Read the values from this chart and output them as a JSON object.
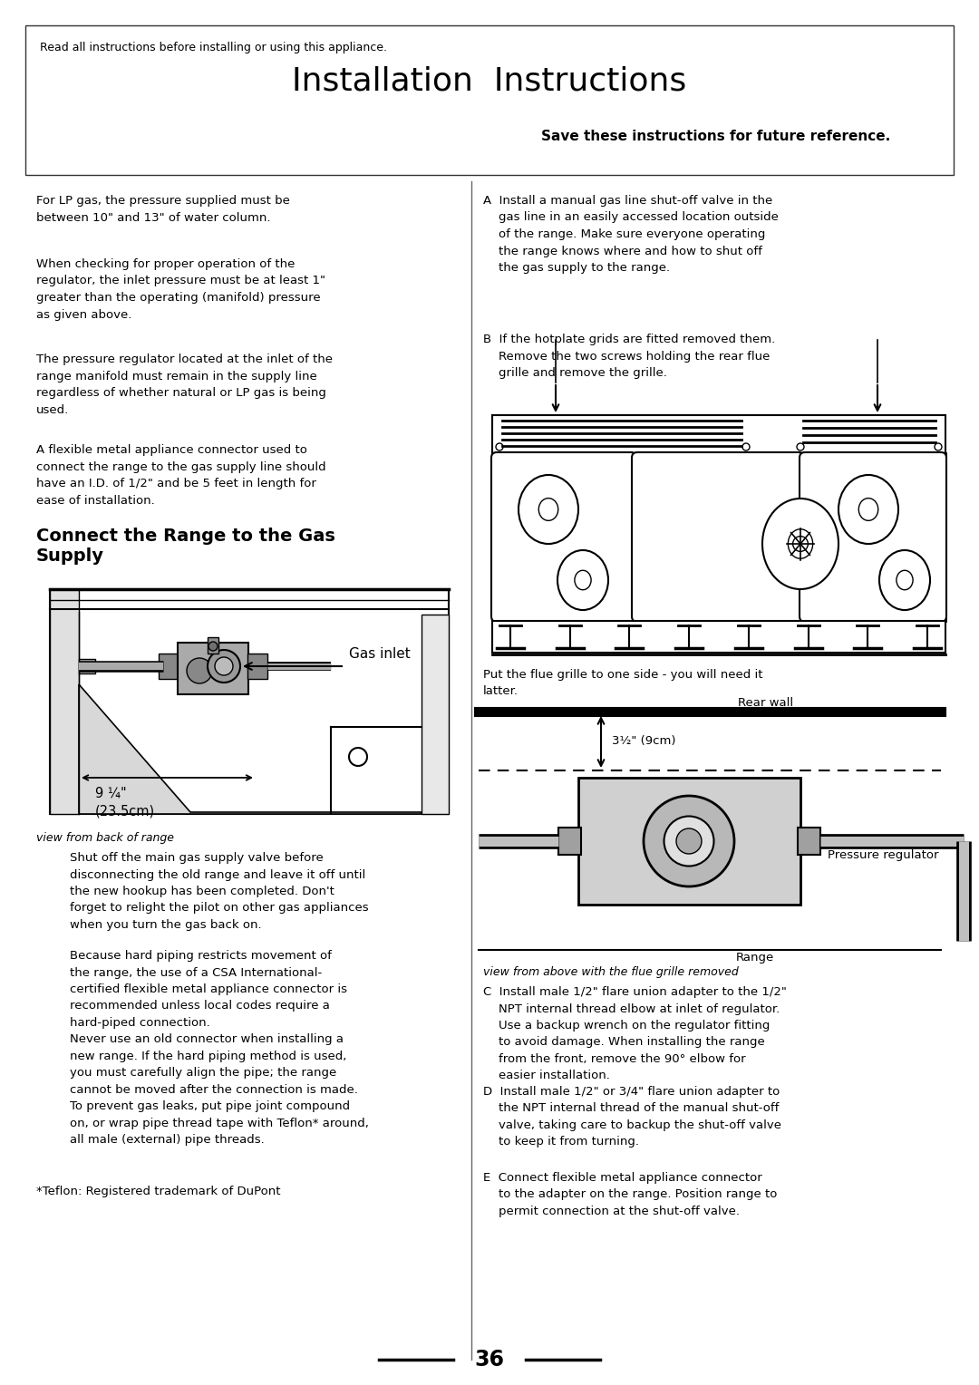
{
  "bg_color": "#ffffff",
  "page_number": "36",
  "header_text": "Read all instructions before installing or using this appliance.",
  "title": "Installation  Instructions",
  "subtitle": "Save these instructions for future reference.",
  "col1_para1": "For LP gas, the pressure supplied must be\nbetween 10\" and 13\" of water column.",
  "col1_para2": "When checking for proper operation of the\nregulator, the inlet pressure must be at least 1\"\ngreater than the operating (manifold) pressure\nas given above.",
  "col1_para3": "The pressure regulator located at the inlet of the\nrange manifold must remain in the supply line\nregardless of whether natural or LP gas is being\nused.",
  "col1_para4": "A flexible metal appliance connector used to\nconnect the range to the gas supply line should\nhave an I.D. of 1/2\" and be 5 feet in length for\nease of installation.",
  "section_title": "Connect the Range to the Gas\nSupply",
  "gas_inlet_label": "Gas inlet",
  "dimension_label": "9 ¼\"\n(23.5cm)",
  "view_back_label": "view from back of range",
  "col1_para5": "    Shut off the main gas supply valve before\n    disconnecting the old range and leave it off until\n    the new hookup has been completed. Don't\n    forget to relight the pilot on other gas appliances\n    when you turn the gas back on.",
  "col1_para6": "    Because hard piping restricts movement of\n    the range, the use of a CSA International-\n    certified flexible metal appliance connector is\n    recommended unless local codes require a\n    hard-piped connection.",
  "col1_para7": "    Never use an old connector when installing a\n    new range. If the hard piping method is used,\n    you must carefully align the pipe; the range\n    cannot be moved after the connection is made.\n    To prevent gas leaks, put pipe joint compound\n    on, or wrap pipe thread tape with Teflon* around,\n    all male (external) pipe threads.",
  "col1_teflon": "*Teflon: Registered trademark of DuPont",
  "col2_para_A": "A  Install a manual gas line shut-off valve in the\n    gas line in an easily accessed location outside\n    of the range. Make sure everyone operating\n    the range knows where and how to shut off\n    the gas supply to the range.",
  "col2_para_B": "B  If the hotplate grids are fitted removed them.\n    Remove the two screws holding the rear flue\n    grille and remove the grille.",
  "flue_text": "Put the flue grille to one side - you will need it\nlatter.",
  "rear_wall_label": "Rear wall",
  "dim2_label": "3½\" (9cm)",
  "pressure_reg_label": "Pressure regulator",
  "range_label": "Range",
  "view_above_label": "view from above with the flue grille removed",
  "col2_para_C": "C  Install male 1/2\" flare union adapter to the 1/2\"\n    NPT internal thread elbow at inlet of regulator.\n    Use a backup wrench on the regulator fitting\n    to avoid damage. When installing the range\n    from the front, remove the 90° elbow for\n    easier installation.",
  "col2_para_D": "D  Install male 1/2\" or 3/4\" flare union adapter to\n    the NPT internal thread of the manual shut-off\n    valve, taking care to backup the shut-off valve\n    to keep it from turning.",
  "col2_para_E": "E  Connect flexible metal appliance connector\n    to the adapter on the range. Position range to\n    permit connection at the shut-off valve."
}
